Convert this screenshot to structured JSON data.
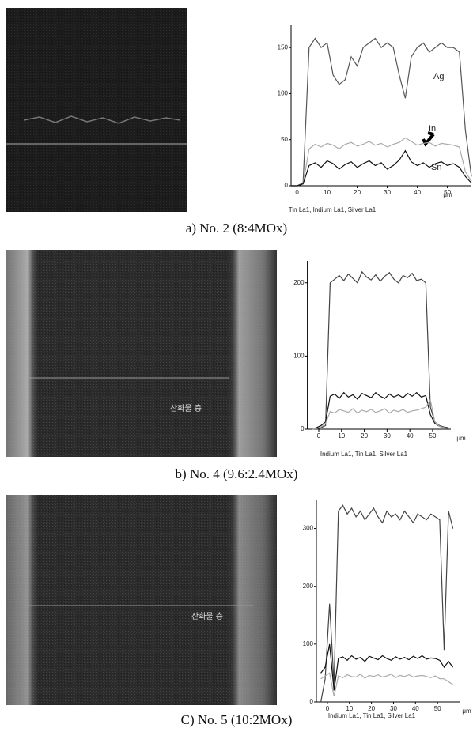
{
  "panels": [
    {
      "caption": "a) No. 2 (8:4MOx)",
      "chart": {
        "type": "line",
        "xlim": [
          -2,
          58
        ],
        "ylim": [
          0,
          175
        ],
        "xticks": [
          0,
          10,
          20,
          30,
          40,
          50
        ],
        "yticks": [
          0,
          50,
          100,
          150
        ],
        "x_unit": "μm",
        "legend": "Tin La1, Indium La1, Silver La1",
        "x": [
          -2,
          0,
          2,
          4,
          6,
          8,
          10,
          12,
          14,
          16,
          18,
          20,
          22,
          24,
          26,
          28,
          30,
          32,
          34,
          36,
          38,
          40,
          42,
          44,
          46,
          48,
          50,
          52,
          54,
          56,
          58
        ],
        "series": [
          {
            "name": "Ag",
            "color": "#555555",
            "values": [
              0,
              0,
              3,
              150,
              160,
              150,
              155,
              120,
              110,
              115,
              140,
              130,
              150,
              155,
              160,
              150,
              155,
              150,
              120,
              95,
              140,
              150,
              155,
              145,
              150,
              155,
              150,
              150,
              145,
              60,
              10
            ]
          },
          {
            "name": "In",
            "color": "#aaaaaa",
            "values": [
              0,
              0,
              2,
              40,
              45,
              42,
              46,
              44,
              40,
              45,
              47,
              43,
              45,
              48,
              44,
              46,
              42,
              45,
              47,
              52,
              48,
              44,
              46,
              47,
              43,
              46,
              45,
              44,
              42,
              15,
              5
            ]
          },
          {
            "name": "Sn",
            "color": "#111111",
            "values": [
              0,
              0,
              2,
              22,
              25,
              20,
              27,
              24,
              18,
              23,
              26,
              20,
              24,
              27,
              22,
              25,
              18,
              22,
              28,
              38,
              26,
              22,
              25,
              20,
              24,
              26,
              22,
              24,
              20,
              10,
              3
            ]
          }
        ]
      }
    },
    {
      "caption": "b) No. 4 (9.6:2.4MOx)",
      "image_label": "산화물 층",
      "chart": {
        "type": "line",
        "xlim": [
          -5,
          58
        ],
        "ylim": [
          0,
          230
        ],
        "xticks": [
          0,
          10,
          20,
          30,
          40,
          50
        ],
        "yticks": [
          0,
          100,
          200
        ],
        "x_unit": "μm",
        "legend": "Indium La1, Tin La1, Silver La1",
        "x": [
          -3,
          -1,
          1,
          3,
          5,
          7,
          9,
          11,
          13,
          15,
          17,
          19,
          21,
          23,
          25,
          27,
          29,
          31,
          33,
          35,
          37,
          39,
          41,
          43,
          45,
          47,
          49,
          51,
          53,
          55,
          57
        ],
        "series": [
          {
            "color": "#444444",
            "values": [
              0,
              0,
              2,
              5,
              200,
              205,
              210,
              203,
              212,
              206,
              200,
              215,
              208,
              204,
              211,
              202,
              209,
              214,
              205,
              200,
              210,
              207,
              213,
              203,
              205,
              200,
              30,
              10,
              5,
              3,
              2
            ]
          },
          {
            "color": "#111111",
            "values": [
              0,
              2,
              5,
              10,
              45,
              48,
              42,
              50,
              44,
              47,
              41,
              49,
              46,
              43,
              50,
              45,
              42,
              48,
              44,
              47,
              43,
              49,
              45,
              50,
              44,
              46,
              20,
              8,
              4,
              2,
              1
            ]
          },
          {
            "color": "#aaaaaa",
            "values": [
              0,
              1,
              3,
              8,
              24,
              22,
              27,
              25,
              23,
              28,
              22,
              26,
              24,
              27,
              23,
              25,
              28,
              22,
              26,
              24,
              27,
              23,
              25,
              26,
              28,
              30,
              40,
              10,
              4,
              2,
              1
            ]
          }
        ]
      }
    },
    {
      "caption": "C) No. 5 (10:2MOx)",
      "image_label": "산화물 층",
      "chart": {
        "type": "line",
        "xlim": [
          -5,
          60
        ],
        "ylim": [
          0,
          350
        ],
        "xticks": [
          0,
          10,
          20,
          30,
          40,
          50
        ],
        "yticks": [
          0,
          100,
          200,
          300
        ],
        "x_unit": "μm",
        "legend": "Indium La1, Tin La1, Silver La1",
        "x": [
          -3,
          -1,
          1,
          3,
          5,
          7,
          9,
          11,
          13,
          15,
          17,
          19,
          21,
          23,
          25,
          27,
          29,
          31,
          33,
          35,
          37,
          39,
          41,
          43,
          45,
          47,
          49,
          51,
          53,
          55,
          57
        ],
        "series": [
          {
            "color": "#444444",
            "values": [
              0,
              40,
              170,
              30,
              330,
              340,
              325,
              335,
              320,
              330,
              315,
              325,
              335,
              320,
              310,
              330,
              320,
              325,
              315,
              330,
              320,
              310,
              325,
              320,
              315,
              325,
              320,
              315,
              90,
              330,
              300
            ]
          },
          {
            "color": "#111111",
            "values": [
              50,
              60,
              100,
              20,
              75,
              78,
              72,
              80,
              74,
              77,
              70,
              79,
              76,
              73,
              80,
              75,
              72,
              78,
              74,
              77,
              73,
              79,
              75,
              80,
              74,
              76,
              75,
              72,
              60,
              70,
              60
            ]
          },
          {
            "color": "#aaaaaa",
            "values": [
              40,
              45,
              50,
              10,
              45,
              42,
              47,
              44,
              43,
              48,
              41,
              46,
              44,
              47,
              43,
              45,
              48,
              42,
              46,
              44,
              47,
              43,
              45,
              46,
              44,
              42,
              45,
              40,
              40,
              35,
              30
            ]
          }
        ]
      }
    }
  ]
}
